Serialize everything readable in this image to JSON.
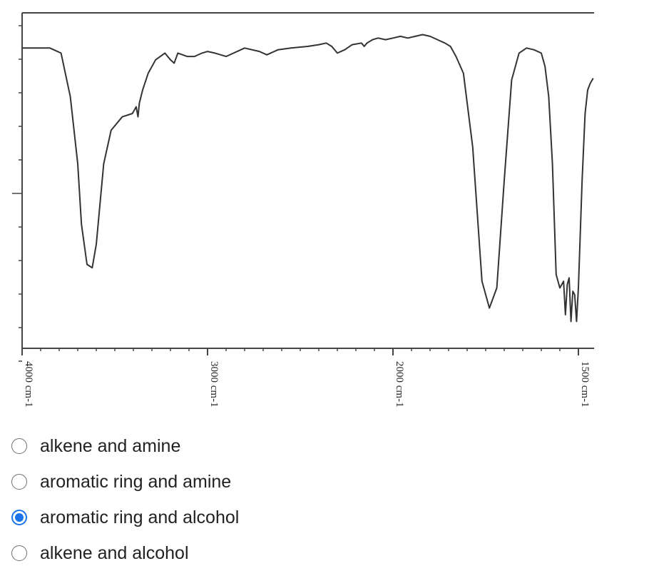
{
  "chart_data": {
    "type": "line",
    "title": "",
    "xlabel": "",
    "ylabel": "",
    "x_reversed": true,
    "xlim": [
      4000,
      1400
    ],
    "ylim": [
      0,
      100
    ],
    "x_ticks": [
      {
        "value": 4000,
        "label": "4000 cm-1"
      },
      {
        "value": 3000,
        "label": "3000 cm-1"
      },
      {
        "value": 2000,
        "label": "2000 cm-1"
      },
      {
        "value": 1500,
        "label": "1500 cm-1"
      }
    ],
    "grid": false,
    "series": [
      {
        "x": [
          4000,
          3850,
          3790,
          3740,
          3700,
          3680,
          3650,
          3622,
          3600,
          3560,
          3520,
          3460,
          3405,
          3395,
          3385,
          3375,
          3368,
          3350,
          3320,
          3280,
          3230,
          3200,
          3180,
          3160,
          3110,
          3070,
          3030,
          3000,
          2960,
          2900,
          2800,
          2720,
          2680,
          2620,
          2550,
          2460,
          2400,
          2360,
          2330,
          2300,
          2260,
          2220,
          2170,
          2155,
          2140,
          2110,
          2080,
          2040,
          2000,
          1980,
          1960,
          1940,
          1920,
          1900,
          1880,
          1860,
          1845,
          1830,
          1810,
          1785,
          1760,
          1740,
          1720,
          1700,
          1680,
          1660,
          1640,
          1620,
          1600,
          1590,
          1580,
          1570,
          1560,
          1550,
          1540,
          1535,
          1530,
          1525,
          1520,
          1515,
          1510,
          1505,
          1500,
          1490,
          1482,
          1475,
          1468,
          1460
        ],
        "values": [
          89.5,
          89.5,
          88,
          75,
          55,
          37,
          25,
          24,
          31,
          55,
          65,
          69,
          70,
          71,
          72,
          69,
          73,
          77,
          82,
          86,
          88,
          86,
          85,
          88,
          87,
          87,
          88,
          88.5,
          88,
          87,
          89.5,
          88.5,
          87.5,
          89,
          89.5,
          90,
          90.5,
          91,
          90,
          88,
          89,
          90.5,
          91,
          90,
          91,
          92,
          92.5,
          92,
          92.5,
          93,
          92.5,
          93,
          93.5,
          93,
          92,
          91,
          90,
          87,
          82,
          60,
          20,
          12,
          18,
          50,
          80,
          88,
          89.5,
          89,
          88,
          84,
          75,
          55,
          22,
          18,
          20,
          10,
          19,
          21,
          8,
          17,
          16,
          8,
          18,
          50,
          70,
          77,
          79,
          80.5
        ]
      }
    ]
  },
  "options": [
    {
      "label": "alkene and amine",
      "checked": false
    },
    {
      "label": "aromatic ring and amine",
      "checked": false
    },
    {
      "label": "aromatic ring and alcohol",
      "checked": true
    },
    {
      "label": "alkene and alcohol",
      "checked": false
    }
  ],
  "colors": {
    "trace": "#333333",
    "axis": "#444444",
    "radio_selected": "#1a73e8",
    "radio_border": "#6e6e6e"
  }
}
